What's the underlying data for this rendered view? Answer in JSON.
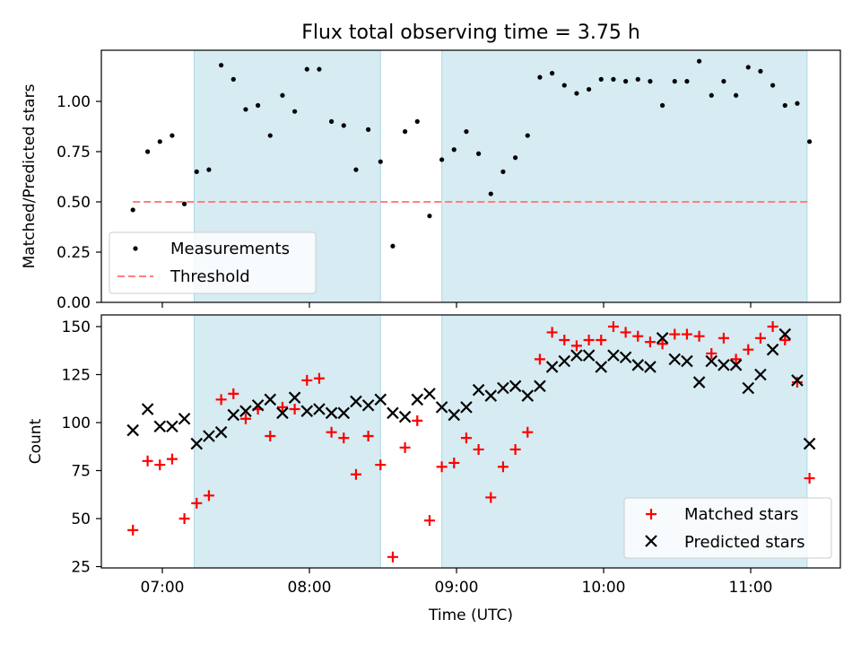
{
  "figure": {
    "title": "Flux total observing time = 3.75 h",
    "xlabel": "Time (UTC)",
    "xticks": [
      "07:00",
      "08:00",
      "09:00",
      "10:00",
      "11:00"
    ],
    "shaded_color": "#add8e6",
    "shaded_intervals": [
      [
        "07:13",
        "08:29"
      ],
      [
        "08:54",
        "11:23"
      ]
    ]
  },
  "chart_data": [
    {
      "type": "scatter",
      "panel": "top",
      "title": "Flux total observing time = 3.75 h",
      "xlabel": "",
      "ylabel": "Matched/Predicted stars",
      "ylim": [
        0,
        1.25
      ],
      "yticks": [
        "0.00",
        "0.25",
        "0.50",
        "0.75",
        "1.00"
      ],
      "legend": "lower left",
      "series": [
        {
          "name": "Measurements",
          "marker": "dot",
          "color": "#000000",
          "points": [
            [
              "06:48",
              0.46
            ],
            [
              "06:54",
              0.75
            ],
            [
              "06:59",
              0.8
            ],
            [
              "07:04",
              0.83
            ],
            [
              "07:09",
              0.49
            ],
            [
              "07:14",
              0.65
            ],
            [
              "07:19",
              0.66
            ],
            [
              "07:24",
              1.18
            ],
            [
              "07:29",
              1.11
            ],
            [
              "07:34",
              0.96
            ],
            [
              "07:39",
              0.98
            ],
            [
              "07:44",
              0.83
            ],
            [
              "07:49",
              1.03
            ],
            [
              "07:54",
              0.95
            ],
            [
              "07:59",
              1.16
            ],
            [
              "08:04",
              1.16
            ],
            [
              "08:09",
              0.9
            ],
            [
              "08:14",
              0.88
            ],
            [
              "08:19",
              0.66
            ],
            [
              "08:24",
              0.86
            ],
            [
              "08:29",
              0.7
            ],
            [
              "08:34",
              0.28
            ],
            [
              "08:39",
              0.85
            ],
            [
              "08:44",
              0.9
            ],
            [
              "08:49",
              0.43
            ],
            [
              "08:54",
              0.71
            ],
            [
              "08:59",
              0.76
            ],
            [
              "09:04",
              0.85
            ],
            [
              "09:09",
              0.74
            ],
            [
              "09:14",
              0.54
            ],
            [
              "09:19",
              0.65
            ],
            [
              "09:24",
              0.72
            ],
            [
              "09:29",
              0.83
            ],
            [
              "09:34",
              1.12
            ],
            [
              "09:39",
              1.14
            ],
            [
              "09:44",
              1.08
            ],
            [
              "09:49",
              1.04
            ],
            [
              "09:54",
              1.06
            ],
            [
              "09:59",
              1.11
            ],
            [
              "10:04",
              1.11
            ],
            [
              "10:09",
              1.1
            ],
            [
              "10:14",
              1.11
            ],
            [
              "10:19",
              1.1
            ],
            [
              "10:24",
              0.98
            ],
            [
              "10:29",
              1.1
            ],
            [
              "10:34",
              1.1
            ],
            [
              "10:39",
              1.2
            ],
            [
              "10:44",
              1.03
            ],
            [
              "10:49",
              1.1
            ],
            [
              "10:54",
              1.03
            ],
            [
              "10:59",
              1.17
            ],
            [
              "11:04",
              1.15
            ],
            [
              "11:09",
              1.08
            ],
            [
              "11:14",
              0.98
            ],
            [
              "11:19",
              0.99
            ],
            [
              "11:24",
              0.8
            ]
          ]
        },
        {
          "name": "Threshold",
          "marker": "dashed-line",
          "color": "#ff7f7f",
          "points": [
            [
              "06:48",
              0.5
            ],
            [
              "11:24",
              0.5
            ]
          ]
        }
      ]
    },
    {
      "type": "scatter",
      "panel": "bottom",
      "xlabel": "Time (UTC)",
      "ylabel": "Count",
      "ylim": [
        24,
        156
      ],
      "yticks": [
        "25",
        "50",
        "75",
        "100",
        "125",
        "150"
      ],
      "legend": "lower right",
      "series": [
        {
          "name": "Matched stars",
          "marker": "plus",
          "color": "#ff0000",
          "points": [
            [
              "06:48",
              44
            ],
            [
              "06:54",
              80
            ],
            [
              "06:59",
              78
            ],
            [
              "07:04",
              81
            ],
            [
              "07:09",
              50
            ],
            [
              "07:14",
              58
            ],
            [
              "07:19",
              62
            ],
            [
              "07:24",
              112
            ],
            [
              "07:29",
              115
            ],
            [
              "07:34",
              102
            ],
            [
              "07:39",
              107
            ],
            [
              "07:44",
              93
            ],
            [
              "07:49",
              108
            ],
            [
              "07:54",
              107
            ],
            [
              "07:59",
              122
            ],
            [
              "08:04",
              123
            ],
            [
              "08:09",
              95
            ],
            [
              "08:14",
              92
            ],
            [
              "08:19",
              73
            ],
            [
              "08:24",
              93
            ],
            [
              "08:29",
              78
            ],
            [
              "08:34",
              30
            ],
            [
              "08:39",
              87
            ],
            [
              "08:44",
              101
            ],
            [
              "08:49",
              49
            ],
            [
              "08:54",
              77
            ],
            [
              "08:59",
              79
            ],
            [
              "09:04",
              92
            ],
            [
              "09:09",
              86
            ],
            [
              "09:14",
              61
            ],
            [
              "09:19",
              77
            ],
            [
              "09:24",
              86
            ],
            [
              "09:29",
              95
            ],
            [
              "09:34",
              133
            ],
            [
              "09:39",
              147
            ],
            [
              "09:44",
              143
            ],
            [
              "09:49",
              140
            ],
            [
              "09:54",
              143
            ],
            [
              "09:59",
              143
            ],
            [
              "10:04",
              150
            ],
            [
              "10:09",
              147
            ],
            [
              "10:14",
              145
            ],
            [
              "10:19",
              142
            ],
            [
              "10:24",
              141
            ],
            [
              "10:29",
              146
            ],
            [
              "10:34",
              146
            ],
            [
              "10:39",
              145
            ],
            [
              "10:44",
              136
            ],
            [
              "10:49",
              144
            ],
            [
              "10:54",
              133
            ],
            [
              "10:59",
              138
            ],
            [
              "11:04",
              144
            ],
            [
              "11:09",
              150
            ],
            [
              "11:14",
              143
            ],
            [
              "11:19",
              121
            ],
            [
              "11:24",
              71
            ]
          ]
        },
        {
          "name": "Predicted stars",
          "marker": "x",
          "color": "#000000",
          "points": [
            [
              "06:48",
              96
            ],
            [
              "06:54",
              107
            ],
            [
              "06:59",
              98
            ],
            [
              "07:04",
              98
            ],
            [
              "07:09",
              102
            ],
            [
              "07:14",
              89
            ],
            [
              "07:19",
              93
            ],
            [
              "07:24",
              95
            ],
            [
              "07:29",
              104
            ],
            [
              "07:34",
              106
            ],
            [
              "07:39",
              109
            ],
            [
              "07:44",
              112
            ],
            [
              "07:49",
              105
            ],
            [
              "07:54",
              113
            ],
            [
              "07:59",
              106
            ],
            [
              "08:04",
              107
            ],
            [
              "08:09",
              105
            ],
            [
              "08:14",
              105
            ],
            [
              "08:19",
              111
            ],
            [
              "08:24",
              109
            ],
            [
              "08:29",
              112
            ],
            [
              "08:34",
              105
            ],
            [
              "08:39",
              103
            ],
            [
              "08:44",
              112
            ],
            [
              "08:49",
              115
            ],
            [
              "08:54",
              108
            ],
            [
              "08:59",
              104
            ],
            [
              "09:04",
              108
            ],
            [
              "09:09",
              117
            ],
            [
              "09:14",
              114
            ],
            [
              "09:19",
              118
            ],
            [
              "09:24",
              119
            ],
            [
              "09:29",
              114
            ],
            [
              "09:34",
              119
            ],
            [
              "09:39",
              129
            ],
            [
              "09:44",
              132
            ],
            [
              "09:49",
              135
            ],
            [
              "09:54",
              135
            ],
            [
              "09:59",
              129
            ],
            [
              "10:04",
              135
            ],
            [
              "10:09",
              134
            ],
            [
              "10:14",
              130
            ],
            [
              "10:19",
              129
            ],
            [
              "10:24",
              144
            ],
            [
              "10:29",
              133
            ],
            [
              "10:34",
              132
            ],
            [
              "10:39",
              121
            ],
            [
              "10:44",
              132
            ],
            [
              "10:49",
              130
            ],
            [
              "10:54",
              130
            ],
            [
              "10:59",
              118
            ],
            [
              "11:04",
              125
            ],
            [
              "11:09",
              138
            ],
            [
              "11:14",
              146
            ],
            [
              "11:19",
              122
            ],
            [
              "11:24",
              89
            ]
          ]
        }
      ]
    }
  ]
}
